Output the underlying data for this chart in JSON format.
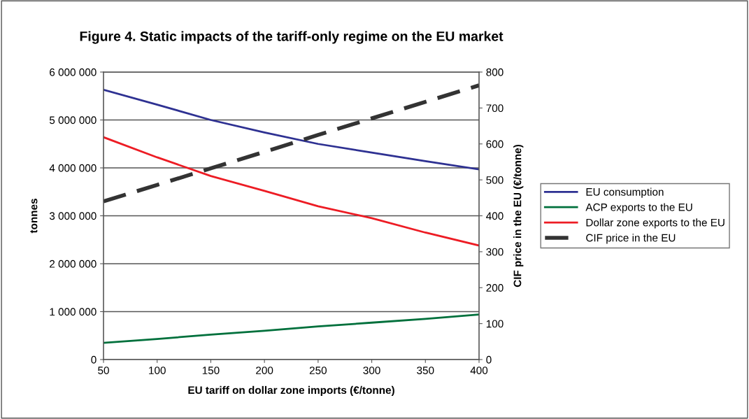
{
  "chart_data": {
    "type": "line",
    "title": "Figure 4. Static impacts of the tariff-only regime on the EU market",
    "xlabel": "EU tariff on dollar zone imports (€/tonne)",
    "ylabel": "tonnes",
    "y2label": "CIF price in the EU (€/tonne)",
    "x": [
      50,
      100,
      150,
      200,
      250,
      300,
      350,
      400
    ],
    "series": [
      {
        "name": "EU consumption",
        "color": "#2e3192",
        "values": [
          5630000,
          5320000,
          5000000,
          4740000,
          4500000,
          4320000,
          4140000,
          3970000
        ]
      },
      {
        "name": "ACP exports to the EU",
        "color": "#00703c",
        "values": [
          350000,
          430000,
          520000,
          600000,
          690000,
          770000,
          850000,
          940000
        ]
      },
      {
        "name": "Dollar zone exports to the EU",
        "color": "#ed1c24",
        "values": [
          4640000,
          4220000,
          3830000,
          3520000,
          3200000,
          2950000,
          2650000,
          2380000
        ]
      },
      {
        "name": "CIF price in the EU",
        "color": "#333333",
        "axis": "y2",
        "line_style": "dashed",
        "values": [
          440,
          486,
          532,
          578,
          625,
          671,
          717,
          763
        ]
      }
    ],
    "xlim": [
      50,
      400
    ],
    "xticks": [
      50,
      100,
      150,
      200,
      250,
      300,
      350,
      400
    ],
    "ylim": [
      0,
      6000000
    ],
    "yticks": [
      {
        "value": 0,
        "label": "0"
      },
      {
        "value": 1000000,
        "label": "1 000 000"
      },
      {
        "value": 2000000,
        "label": "2 000 000"
      },
      {
        "value": 3000000,
        "label": "3 000 000"
      },
      {
        "value": 4000000,
        "label": "4 000 000"
      },
      {
        "value": 5000000,
        "label": "5 000 000"
      },
      {
        "value": 6000000,
        "label": "6 000 000"
      }
    ],
    "y2lim": [
      0,
      800
    ],
    "y2ticks": [
      0,
      100,
      200,
      300,
      400,
      500,
      600,
      700,
      800
    ],
    "grid": "y",
    "legend": "right",
    "marker": "none",
    "line_style": "solid"
  }
}
